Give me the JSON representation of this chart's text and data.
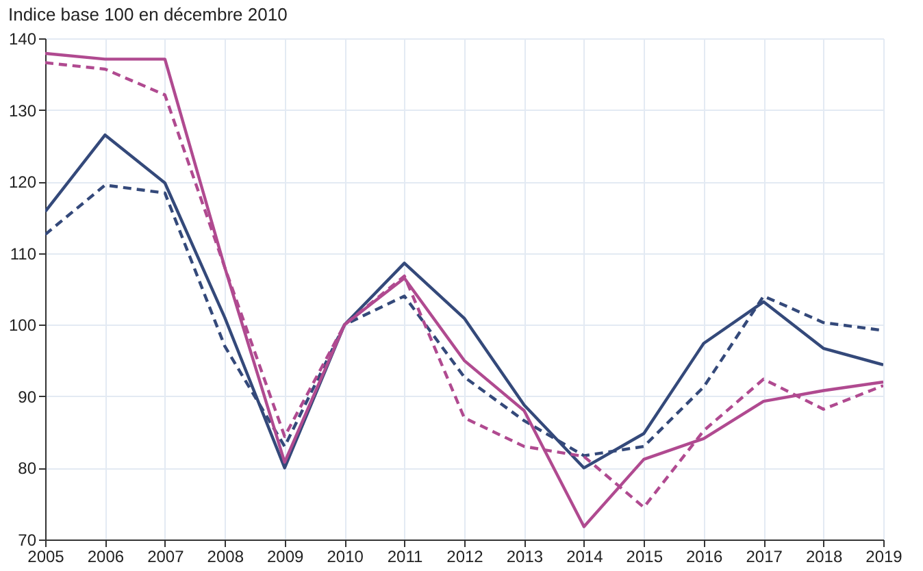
{
  "chart_data": {
    "type": "line",
    "title": "Indice base 100 en décembre 2010",
    "x": [
      2005,
      2006,
      2007,
      2008,
      2009,
      2010,
      2011,
      2012,
      2013,
      2014,
      2015,
      2016,
      2017,
      2018,
      2019
    ],
    "series": [
      {
        "color": "#34497a",
        "line_style": "solid",
        "values": [
          115.8,
          126.5,
          119.8,
          101,
          80,
          100,
          108.6,
          100.9,
          88.8,
          80,
          84.8,
          97.4,
          103.2,
          96.7,
          94.4
        ]
      },
      {
        "color": "#34497a",
        "line_style": "dashed",
        "values": [
          112.6,
          119.5,
          118.4,
          97,
          83,
          100,
          104,
          92.7,
          86.6,
          81.7,
          83,
          91.3,
          104,
          100.3,
          99.2
        ]
      },
      {
        "color": "#b04a90",
        "line_style": "solid",
        "values": [
          137.9,
          137.1,
          137.1,
          108,
          80.8,
          100,
          106.5,
          95,
          88,
          71.8,
          81.2,
          84.1,
          89.3,
          90.8,
          92
        ]
      },
      {
        "color": "#b04a90",
        "line_style": "dashed",
        "values": [
          136.6,
          135.7,
          132.1,
          108,
          84.4,
          100,
          106.8,
          87,
          83,
          81.6,
          74.5,
          85.2,
          92.4,
          88.2,
          91.5
        ]
      }
    ],
    "xlim": [
      2005,
      2019
    ],
    "xticks": [
      2005,
      2006,
      2007,
      2008,
      2009,
      2010,
      2011,
      2012,
      2013,
      2014,
      2015,
      2016,
      2017,
      2018,
      2019
    ],
    "ylim": [
      70,
      140
    ],
    "yticks": [
      70,
      80,
      90,
      100,
      110,
      120,
      130,
      140
    ],
    "grid": true,
    "marker": "none"
  }
}
